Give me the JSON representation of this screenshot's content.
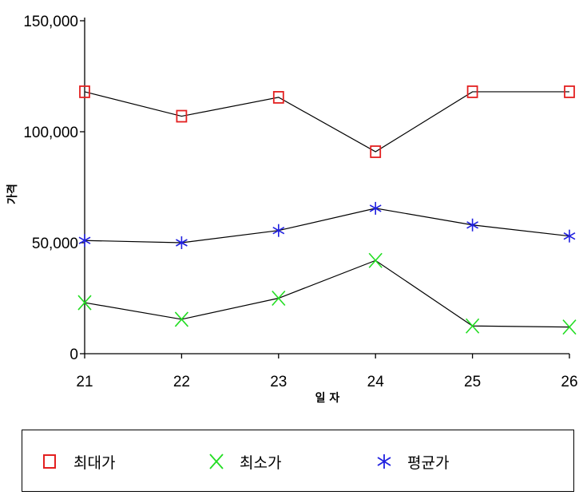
{
  "chart_data": {
    "type": "line",
    "categories": [
      "21",
      "22",
      "23",
      "24",
      "25",
      "26"
    ],
    "series": [
      {
        "name": "최대가",
        "values": [
          118000,
          107000,
          115500,
          91000,
          118000,
          118000
        ],
        "color": "#e32020",
        "marker": "square"
      },
      {
        "name": "최소가",
        "values": [
          23000,
          15500,
          25000,
          42000,
          12500,
          12000
        ],
        "color": "#22dd22",
        "marker": "x"
      },
      {
        "name": "평균가",
        "values": [
          51000,
          50000,
          55500,
          65500,
          58000,
          53000
        ],
        "color": "#2020e0",
        "marker": "asterisk"
      }
    ],
    "y_ticks": [
      "150,000",
      "100,000",
      "50,000",
      "0"
    ],
    "xlabel": "일 자",
    "ylabel": "가격",
    "ylim": [
      0,
      150000
    ],
    "grid": false,
    "legend_position": "bottom",
    "line_color": "#000000"
  }
}
